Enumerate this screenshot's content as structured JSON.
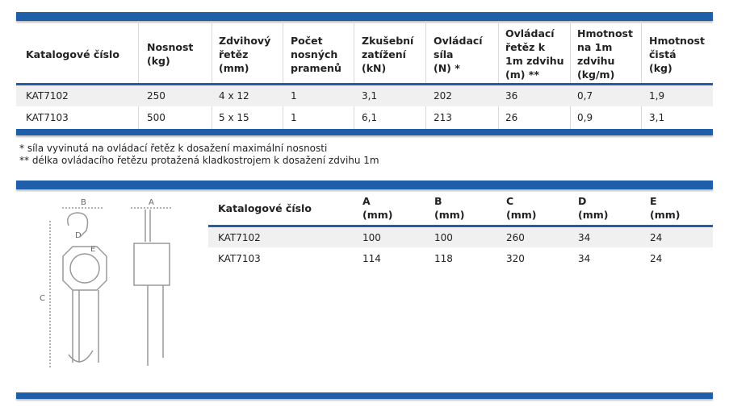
{
  "table1": {
    "headers": [
      "Katalogové číslo",
      "Nosnost\n(kg)",
      "Zdvihový\nřetěz\n(mm)",
      "Počet\nnosných\npramenů",
      "Zkušební\nzatížení\n(kN)",
      "Ovládací\nsíla\n(N) *",
      "Ovládací\nřetěz k\n1m zdvihu\n(m) **",
      "Hmotnost\nna 1m\nzdvihu\n(kg/m)",
      "Hmotnost\nčistá\n(kg)"
    ],
    "rows": [
      [
        "KAT7102",
        "250",
        "4 x 12",
        "1",
        "3,1",
        "202",
        "36",
        "0,7",
        "1,9"
      ],
      [
        "KAT7103",
        "500",
        "5 x 15",
        "1",
        "6,1",
        "213",
        "26",
        "0,9",
        "3,1"
      ]
    ]
  },
  "footnotes": [
    "* síla vyvinutá na ovládací řetěz k dosažení maximální nosnosti",
    "** délka ovládacího řetězu protažená kladkostrojem k dosažení zdvihu 1m"
  ],
  "diagram": {
    "labels": {
      "a": "A",
      "b": "B",
      "c": "C",
      "d": "D",
      "e": "E"
    }
  },
  "table2": {
    "headers": [
      "Katalogové číslo",
      "A\n(mm)",
      "B\n(mm)",
      "C\n(mm)",
      "D\n(mm)",
      "E\n(mm)"
    ],
    "rows": [
      [
        "KAT7102",
        "100",
        "100",
        "260",
        "34",
        "24"
      ],
      [
        "KAT7103",
        "114",
        "118",
        "320",
        "34",
        "24"
      ]
    ]
  },
  "colors": {
    "accent": "#1f5ea8",
    "row_alt": "#f0f0f0"
  }
}
